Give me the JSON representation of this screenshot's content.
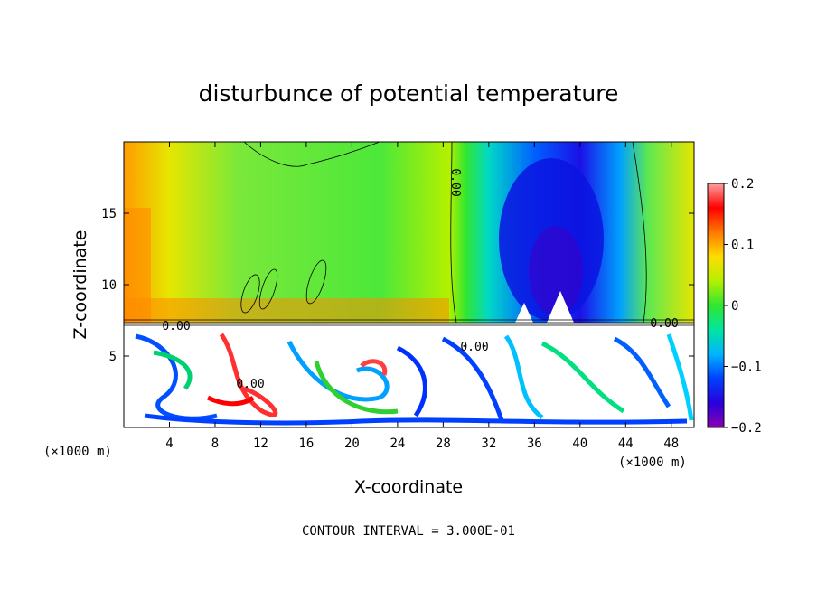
{
  "chart_data": {
    "type": "heatmap",
    "title": "disturbunce of potential temperature",
    "xlabel": "X-coordinate",
    "ylabel": "Z-coordinate",
    "x_unit": "(×1000 m)",
    "x_unit_right": "(×1000 m)",
    "xlim": [
      0,
      50
    ],
    "ylim": [
      0,
      20
    ],
    "x_ticks": [
      "4",
      "8",
      "12",
      "16",
      "20",
      "24",
      "28",
      "32",
      "36",
      "40",
      "44",
      "48"
    ],
    "x_tick_values": [
      4,
      8,
      12,
      16,
      20,
      24,
      28,
      32,
      36,
      40,
      44,
      48
    ],
    "y_ticks": [
      "5",
      "10",
      "15"
    ],
    "y_tick_values": [
      5,
      10,
      15
    ],
    "colorbar": {
      "min": -0.2,
      "max": 0.2,
      "labels": [
        "0.2",
        "0.1",
        "0",
        "−0.1",
        "−0.2"
      ],
      "label_values": [
        0.2,
        0.1,
        0,
        -0.1,
        -0.2
      ],
      "colors": [
        "#8c00b4",
        "#5a00c8",
        "#2800dc",
        "#0000f0",
        "#0040ff",
        "#0080ff",
        "#00b4ff",
        "#00e6e6",
        "#00e6a0",
        "#00dc50",
        "#30e630",
        "#80f030",
        "#b4f000",
        "#e6f000",
        "#ffdc00",
        "#ffaa00",
        "#ff7800",
        "#ff3c00",
        "#ff0000",
        "#ff6060",
        "#ffa0a0"
      ]
    },
    "contour_labels": [
      "0.00",
      "0.00",
      "0.00",
      "0.00",
      "0.00"
    ],
    "contour_interval_text": "CONTOUR INTERVAL = 3.000E-01"
  }
}
